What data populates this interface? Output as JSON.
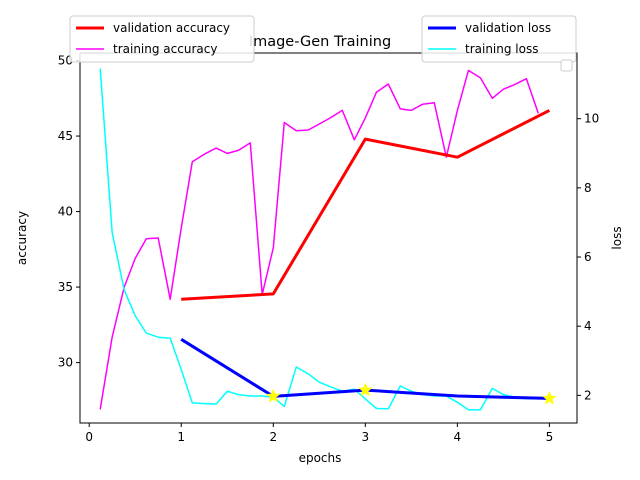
{
  "chart_data": {
    "type": "line",
    "title": "Image-Gen Training",
    "xlabel": "epochs",
    "ylabel_left": "accuracy",
    "ylabel_right": "loss",
    "xlim": [
      -0.1,
      5.3
    ],
    "ylim_left": [
      26.0,
      50.5
    ],
    "ylim_right": [
      1.2,
      11.9
    ],
    "xticks": [
      0,
      1,
      2,
      3,
      4,
      5
    ],
    "yticks_left": [
      30,
      35,
      40,
      45,
      50
    ],
    "yticks_right": [
      2,
      4,
      6,
      8,
      10
    ],
    "grid": false,
    "series_left": [
      {
        "name": "validation accuracy",
        "color": "#ff0000",
        "thick": true,
        "x": [
          1,
          2,
          3,
          4,
          5
        ],
        "y": [
          34.2,
          34.55,
          44.8,
          43.6,
          46.7
        ]
      },
      {
        "name": "training accuracy",
        "color": "#ff00ff",
        "thick": false,
        "x": [
          0.12,
          0.25,
          0.38,
          0.5,
          0.62,
          0.75,
          0.88,
          1.0,
          1.12,
          1.25,
          1.38,
          1.5,
          1.62,
          1.75,
          1.88,
          2.0,
          2.12,
          2.25,
          2.38,
          2.5,
          2.62,
          2.75,
          2.88,
          3.0,
          3.12,
          3.25,
          3.38,
          3.5,
          3.62,
          3.75,
          3.88,
          4.0,
          4.12,
          4.25,
          4.38,
          4.5,
          4.62,
          4.75,
          4.88
        ],
        "y": [
          26.9,
          31.7,
          35.0,
          36.9,
          38.2,
          38.25,
          34.2,
          38.9,
          43.3,
          43.8,
          44.2,
          43.85,
          44.05,
          44.55,
          34.5,
          37.6,
          45.9,
          45.35,
          45.4,
          45.8,
          46.2,
          46.7,
          44.75,
          46.2,
          47.9,
          48.45,
          46.8,
          46.7,
          47.1,
          47.2,
          43.6,
          46.7,
          49.35,
          48.85,
          47.5,
          48.1,
          48.4,
          48.8,
          46.5
        ]
      }
    ],
    "series_right": [
      {
        "name": "validation loss",
        "color": "#0000ff",
        "thick": true,
        "x": [
          1,
          2,
          3,
          4,
          5
        ],
        "y": [
          3.62,
          1.97,
          2.15,
          1.98,
          1.91
        ]
      },
      {
        "name": "training loss",
        "color": "#00ffff",
        "thick": false,
        "x": [
          0.12,
          0.25,
          0.38,
          0.5,
          0.62,
          0.75,
          0.88,
          1.0,
          1.12,
          1.25,
          1.38,
          1.5,
          1.62,
          1.75,
          1.88,
          2.0,
          2.12,
          2.25,
          2.38,
          2.5,
          2.62,
          2.75,
          2.88,
          3.0,
          3.12,
          3.25,
          3.38,
          3.5,
          3.62,
          3.75,
          3.88,
          4.0,
          4.12,
          4.25,
          4.38,
          4.5,
          4.62,
          4.75,
          4.88,
          5.0
        ],
        "y": [
          11.45,
          6.7,
          5.05,
          4.3,
          3.8,
          3.68,
          3.65,
          2.75,
          1.78,
          1.76,
          1.75,
          2.12,
          2.02,
          1.98,
          1.98,
          1.95,
          1.68,
          2.82,
          2.62,
          2.38,
          2.25,
          2.12,
          2.18,
          1.9,
          1.62,
          1.61,
          2.27,
          2.12,
          2.02,
          1.98,
          1.98,
          1.8,
          1.58,
          1.58,
          2.2,
          2.02,
          1.95,
          1.9,
          1.9,
          1.9
        ]
      }
    ],
    "markers": {
      "color": "#ffff00",
      "shape": "star",
      "x": [
        2,
        3,
        5
      ],
      "y_loss": [
        1.97,
        2.15,
        1.91
      ]
    },
    "legend_left": {
      "placement": "top-left",
      "entries": [
        "validation accuracy",
        "training accuracy"
      ]
    },
    "legend_right": {
      "placement": "top-right",
      "entries": [
        "validation loss",
        "training loss"
      ]
    }
  }
}
